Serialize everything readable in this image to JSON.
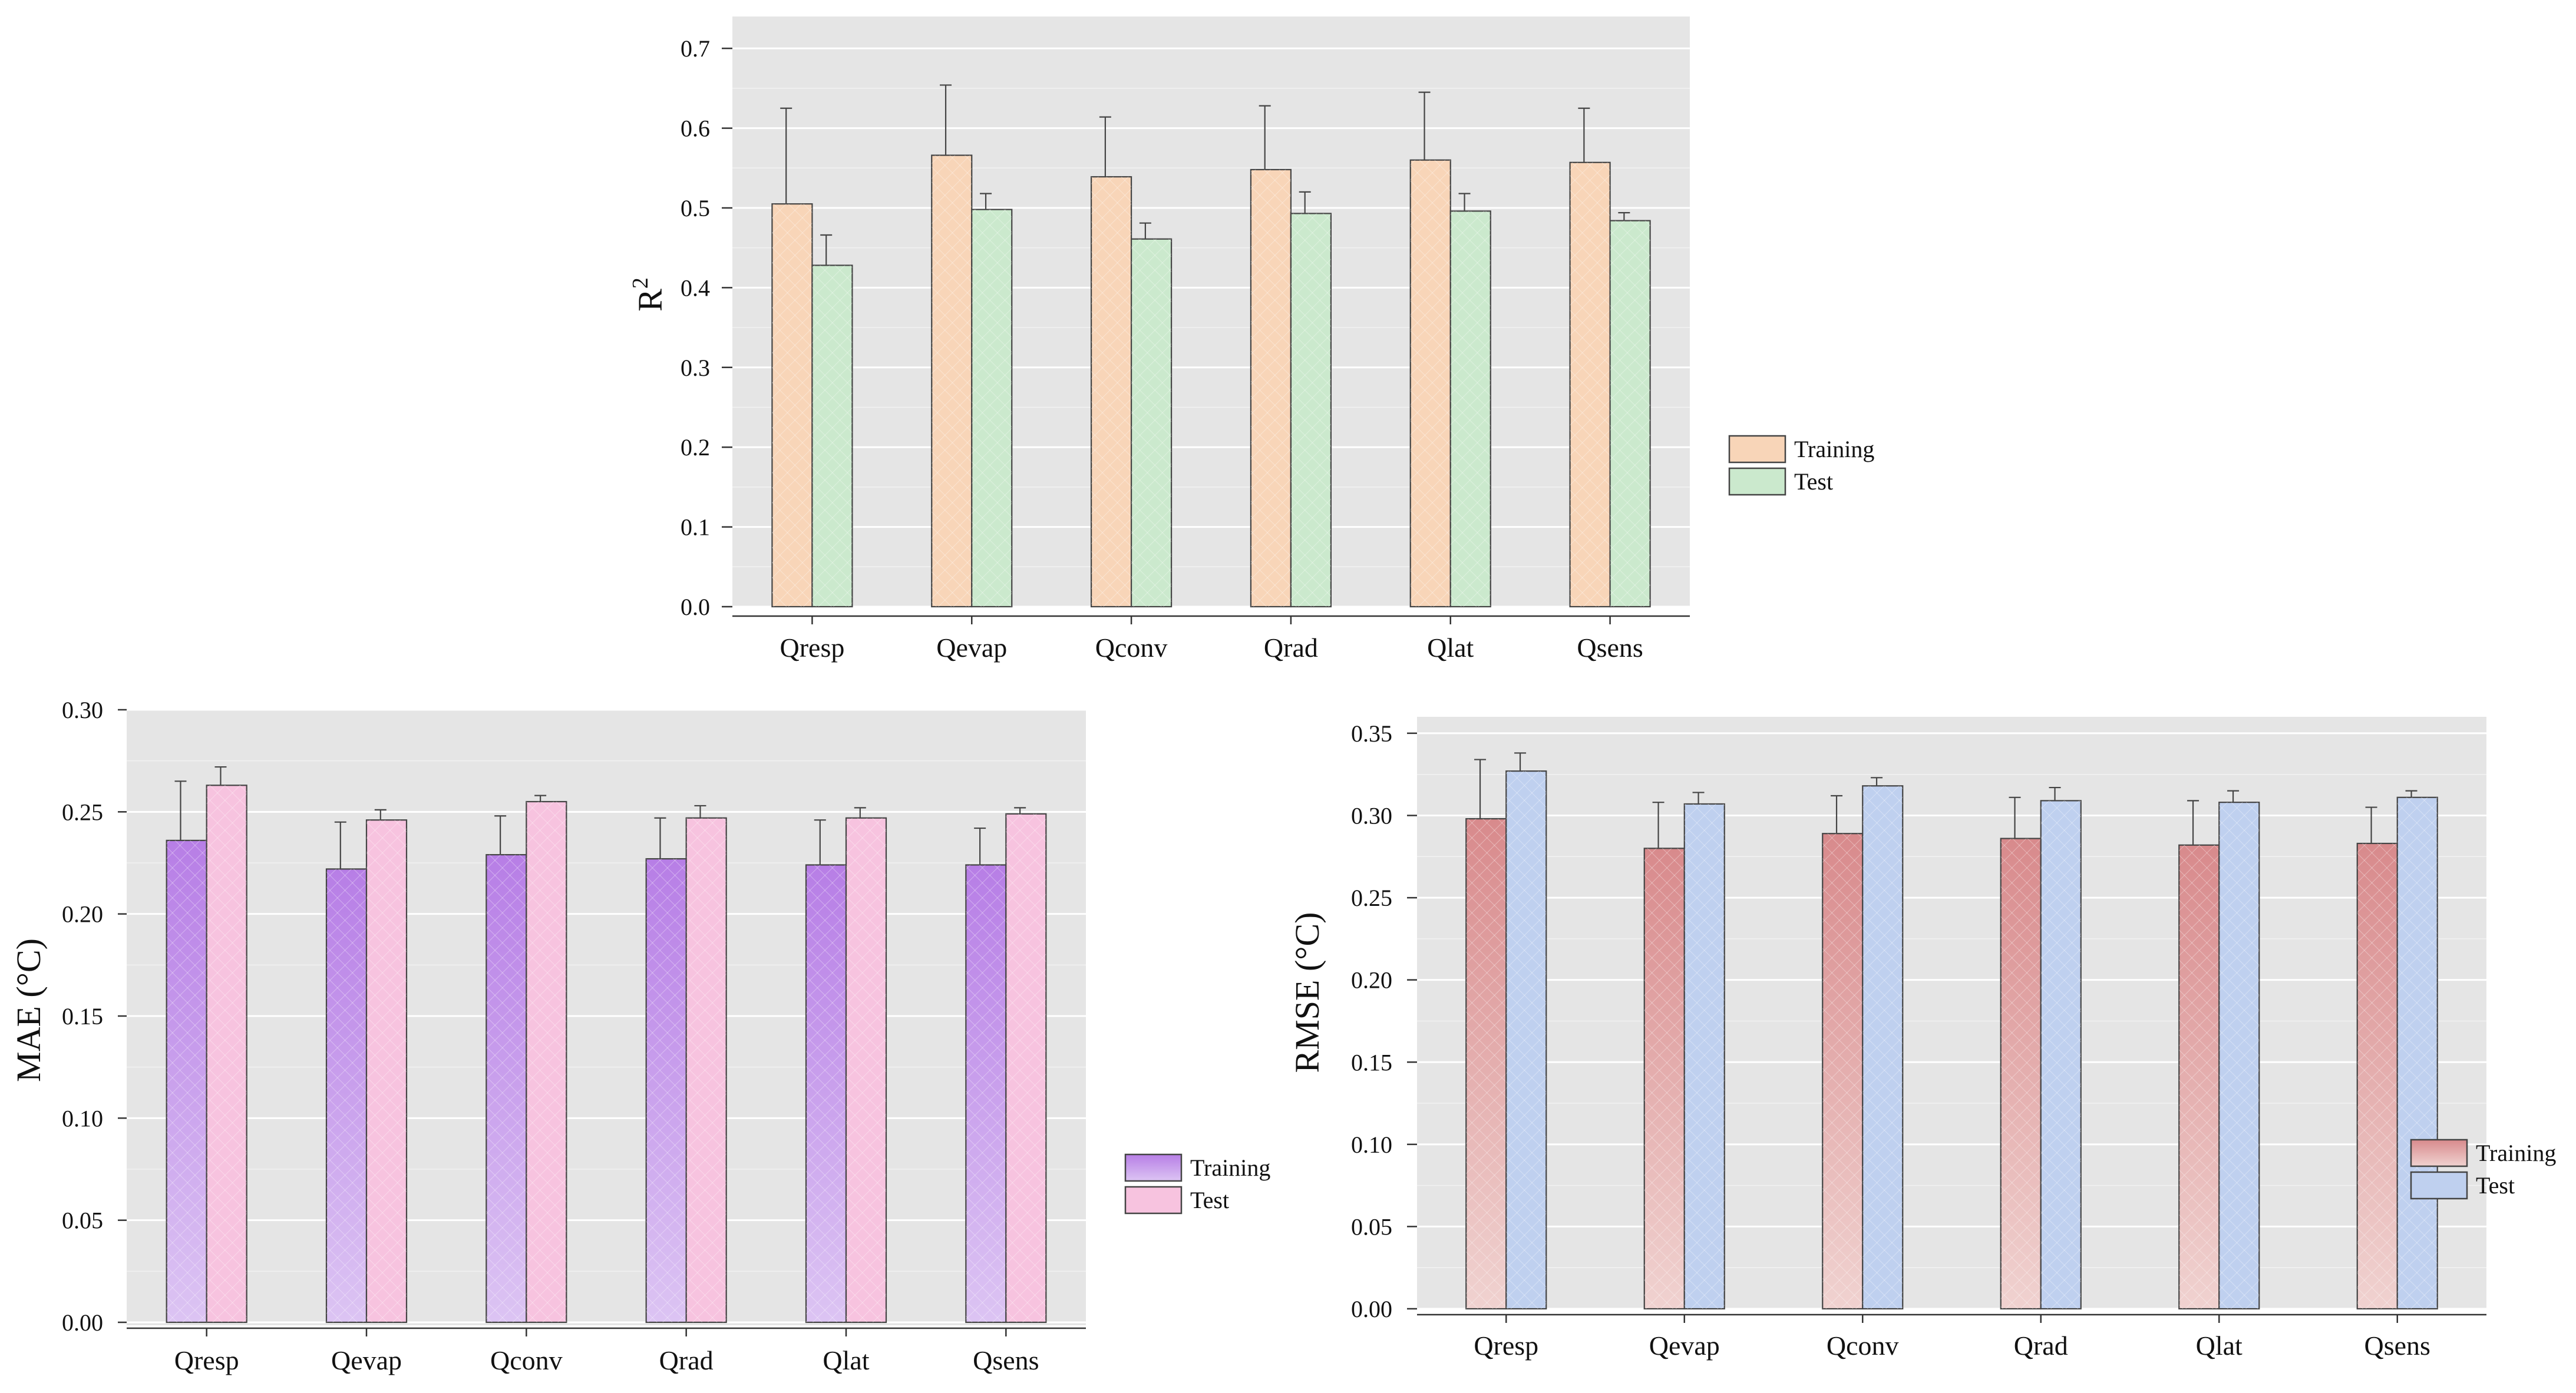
{
  "chart_data": [
    {
      "type": "bar",
      "id": "r2",
      "categories": [
        "Qresp",
        "Qevap",
        "Qconv",
        "Qrad",
        "Qlat",
        "Qsens"
      ],
      "series": [
        {
          "name": "Training",
          "values": [
            0.505,
            0.566,
            0.539,
            0.548,
            0.56,
            0.557
          ],
          "error": [
            0.12,
            0.088,
            0.075,
            0.08,
            0.085,
            0.068
          ]
        },
        {
          "name": "Test",
          "values": [
            0.428,
            0.498,
            0.461,
            0.493,
            0.496,
            0.484
          ],
          "error": [
            0.038,
            0.02,
            0.02,
            0.027,
            0.022,
            0.01
          ]
        }
      ],
      "ylabel": "R",
      "ylabel_sup": "2",
      "ylim": [
        0,
        0.74
      ],
      "yticks": [
        "0.0",
        "0.1",
        "0.2",
        "0.3",
        "0.4",
        "0.5",
        "0.6",
        "0.7"
      ],
      "legend": [
        "Training",
        "Test"
      ],
      "colors": {
        "training": "#f8d5b8",
        "test": "#cbe9cd"
      }
    },
    {
      "type": "bar",
      "id": "mae",
      "categories": [
        "Qresp",
        "Qevap",
        "Qconv",
        "Qrad",
        "Qlat",
        "Qsens"
      ],
      "series": [
        {
          "name": "Training",
          "values": [
            0.236,
            0.222,
            0.229,
            0.227,
            0.224,
            0.224
          ],
          "error": [
            0.029,
            0.023,
            0.019,
            0.02,
            0.022,
            0.018
          ]
        },
        {
          "name": "Test",
          "values": [
            0.263,
            0.246,
            0.255,
            0.247,
            0.247,
            0.249
          ],
          "error": [
            0.009,
            0.005,
            0.003,
            0.006,
            0.005,
            0.003
          ]
        }
      ],
      "ylabel": "MAE (°C)",
      "ylim": [
        0,
        0.3
      ],
      "yticks": [
        "0.00",
        "0.05",
        "0.10",
        "0.15",
        "0.20",
        "0.25",
        "0.30"
      ],
      "legend": [
        "Training",
        "Test"
      ],
      "colors": {
        "training_top": "#b77ee6",
        "training_bottom": "#dcc4f3",
        "test": "#f7c3df"
      }
    },
    {
      "type": "bar",
      "id": "rmse",
      "categories": [
        "Qresp",
        "Qevap",
        "Qconv",
        "Qrad",
        "Qlat",
        "Qsens"
      ],
      "series": [
        {
          "name": "Training",
          "values": [
            0.298,
            0.28,
            0.289,
            0.286,
            0.282,
            0.283
          ],
          "error": [
            0.036,
            0.028,
            0.023,
            0.025,
            0.027,
            0.022
          ]
        },
        {
          "name": "Test",
          "values": [
            0.327,
            0.307,
            0.318,
            0.309,
            0.308,
            0.311
          ],
          "error": [
            0.011,
            0.007,
            0.005,
            0.008,
            0.007,
            0.004
          ]
        }
      ],
      "ylabel": "RMSE (°C)",
      "ylim": [
        0,
        0.36
      ],
      "yticks": [
        "0.00",
        "0.05",
        "0.10",
        "0.15",
        "0.20",
        "0.25",
        "0.30",
        "0.35"
      ],
      "legend": [
        "Training",
        "Test"
      ],
      "colors": {
        "training_top": "#d88a8c",
        "training_bottom": "#f0d2d0",
        "test": "#bfd0ef"
      }
    }
  ]
}
